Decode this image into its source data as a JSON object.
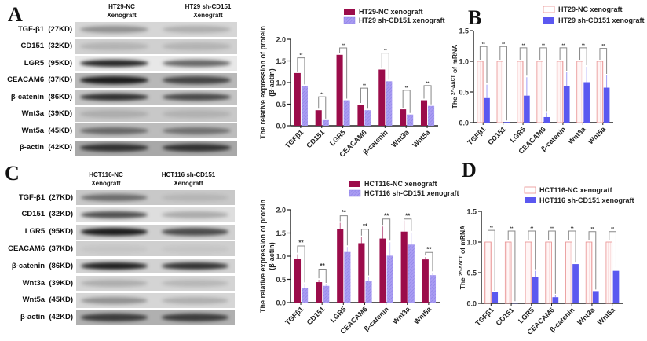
{
  "panels": {
    "A": {
      "letter": "A",
      "col1": [
        "HT29-NC",
        "Xenograft"
      ],
      "col2": [
        "HT29 sh-CD151",
        "Xenograft"
      ]
    },
    "C": {
      "letter": "C",
      "col1": [
        "HCT116-NC",
        "Xenograft"
      ],
      "col2": [
        "HCT116 sh-CD151",
        "Xenograft"
      ]
    },
    "B": {
      "letter": "B"
    },
    "D": {
      "letter": "D"
    }
  },
  "blot_rows": [
    {
      "name": "TGF-β1",
      "kd": "(27KD)"
    },
    {
      "name": "CD151",
      "kd": "(32KD)"
    },
    {
      "name": "LGR5",
      "kd": "(95KD)"
    },
    {
      "name": "CEACAM6",
      "kd": "(37KD)"
    },
    {
      "name": "β-catenin",
      "kd": "(86KD)"
    },
    {
      "name": "Wnt3a",
      "kd": "(39KD)"
    },
    {
      "name": "Wnt5a",
      "kd": "(45KD)"
    },
    {
      "name": "β-actin",
      "kd": "(42KD)"
    }
  ],
  "colors": {
    "nc_protein": "#9b0c4a",
    "sh_protein": "#a99cf2",
    "nc_mrna_fill": "#fde8e8",
    "nc_mrna_edge": "#e88a8a",
    "sh_mrna": "#5b58f0"
  },
  "chart_data": [
    {
      "id": "A-right",
      "type": "bar",
      "title": "",
      "ylabel": "The relative expression of protein (β-actin)",
      "ylim": [
        0,
        2.0
      ],
      "yticks": [
        "0.0",
        "0.5",
        "1.0",
        "1.5",
        "2.0"
      ],
      "categories": [
        "TGFβ1",
        "CD151",
        "LGR5",
        "CEACAM6",
        "β-catenin",
        "Wnt3a",
        "Wnt5a"
      ],
      "series": [
        {
          "name": "HT29-NC xenograft",
          "values": [
            1.22,
            0.36,
            1.64,
            0.49,
            1.3,
            0.38,
            0.59
          ]
        },
        {
          "name": "HT29 sh-CD151 xenograft",
          "values": [
            0.92,
            0.13,
            0.59,
            0.36,
            1.03,
            0.26,
            0.46
          ]
        }
      ],
      "bracket_heights": [
        1.57,
        0.67,
        1.8,
        0.87,
        1.68,
        0.82,
        0.93
      ],
      "significance": "**",
      "legend_position": "top"
    },
    {
      "id": "B",
      "type": "bar",
      "ylabel": "The 2^-ΔΔCT of mRNA",
      "ylim": [
        0,
        1.5
      ],
      "yticks": [
        "0.0",
        "0.5",
        "1.0",
        "1.5"
      ],
      "categories": [
        "TGFβ1",
        "CD151",
        "LGR5",
        "CEACAM6",
        "β-catenin",
        "Wnt3a",
        "Wnt5a"
      ],
      "series": [
        {
          "name": "HT29-NC xenograft",
          "values": [
            1.0,
            1.0,
            1.0,
            1.0,
            1.0,
            1.0,
            1.0
          ]
        },
        {
          "name": "HT29 sh-CD151 xenograft",
          "values": [
            0.4,
            0.01,
            0.44,
            0.09,
            0.6,
            0.66,
            0.57
          ]
        }
      ],
      "errors_sh": [
        0.22,
        0.0,
        0.3,
        0.07,
        0.22,
        0.25,
        0.2
      ],
      "bracket_heights": [
        1.24,
        1.24,
        1.22,
        1.22,
        1.22,
        1.22,
        1.21
      ],
      "significance": "**",
      "legend_position": "top"
    },
    {
      "id": "C-right",
      "type": "bar",
      "ylabel": "The relative expression of protein (β-actin)",
      "ylim": [
        0,
        2.0
      ],
      "yticks": [
        "0.0",
        "0.5",
        "1.0",
        "1.5",
        "2.0"
      ],
      "categories": [
        "TGFβ1",
        "CD151",
        "LGR5",
        "CEACAM6",
        "β-catenin",
        "Wnt3a",
        "Wnt5a"
      ],
      "series": [
        {
          "name": "HCT116-NC xenograft",
          "values": [
            0.94,
            0.44,
            1.58,
            1.28,
            1.38,
            1.53,
            0.93
          ]
        },
        {
          "name": "HCT116 sh-CD151 xenograft",
          "values": [
            0.32,
            0.36,
            1.09,
            0.46,
            1.01,
            1.25,
            0.59
          ]
        }
      ],
      "errors_nc": [
        0.1,
        0.05,
        0.14,
        0.13,
        0.26,
        0.24,
        0.05
      ],
      "errors_sh": [
        0.08,
        0.03,
        0.11,
        0.09,
        0.29,
        0.26,
        0.05
      ],
      "bracket_heights": [
        1.22,
        0.72,
        1.87,
        1.58,
        1.8,
        1.8,
        1.08
      ],
      "significance": "**",
      "legend_position": "top"
    },
    {
      "id": "D",
      "type": "bar",
      "ylabel": "The 2^-ΔΔCT of mRNA",
      "ylim": [
        0,
        1.5
      ],
      "yticks": [
        "0.0",
        "0.5",
        "1.0",
        "1.5"
      ],
      "categories": [
        "TGFβ1",
        "CD151",
        "LGR5",
        "CEACAM6",
        "β-catenin",
        "Wnt3a",
        "Wnt5a"
      ],
      "series": [
        {
          "name": "HCT116-NC  xenogratf",
          "values": [
            1.0,
            1.0,
            1.0,
            1.0,
            1.0,
            1.0,
            1.0
          ]
        },
        {
          "name": "HCT116 sh-CD151 xenograft",
          "values": [
            0.18,
            0.01,
            0.43,
            0.1,
            0.64,
            0.2,
            0.53
          ]
        }
      ],
      "errors_sh": [
        0.0,
        0.0,
        0.1,
        0.03,
        0.0,
        0.0,
        0.03
      ],
      "bracket_heights": [
        1.19,
        1.18,
        1.18,
        1.18,
        1.18,
        1.17,
        1.17
      ],
      "significance": "**",
      "legend_position": "top"
    }
  ]
}
